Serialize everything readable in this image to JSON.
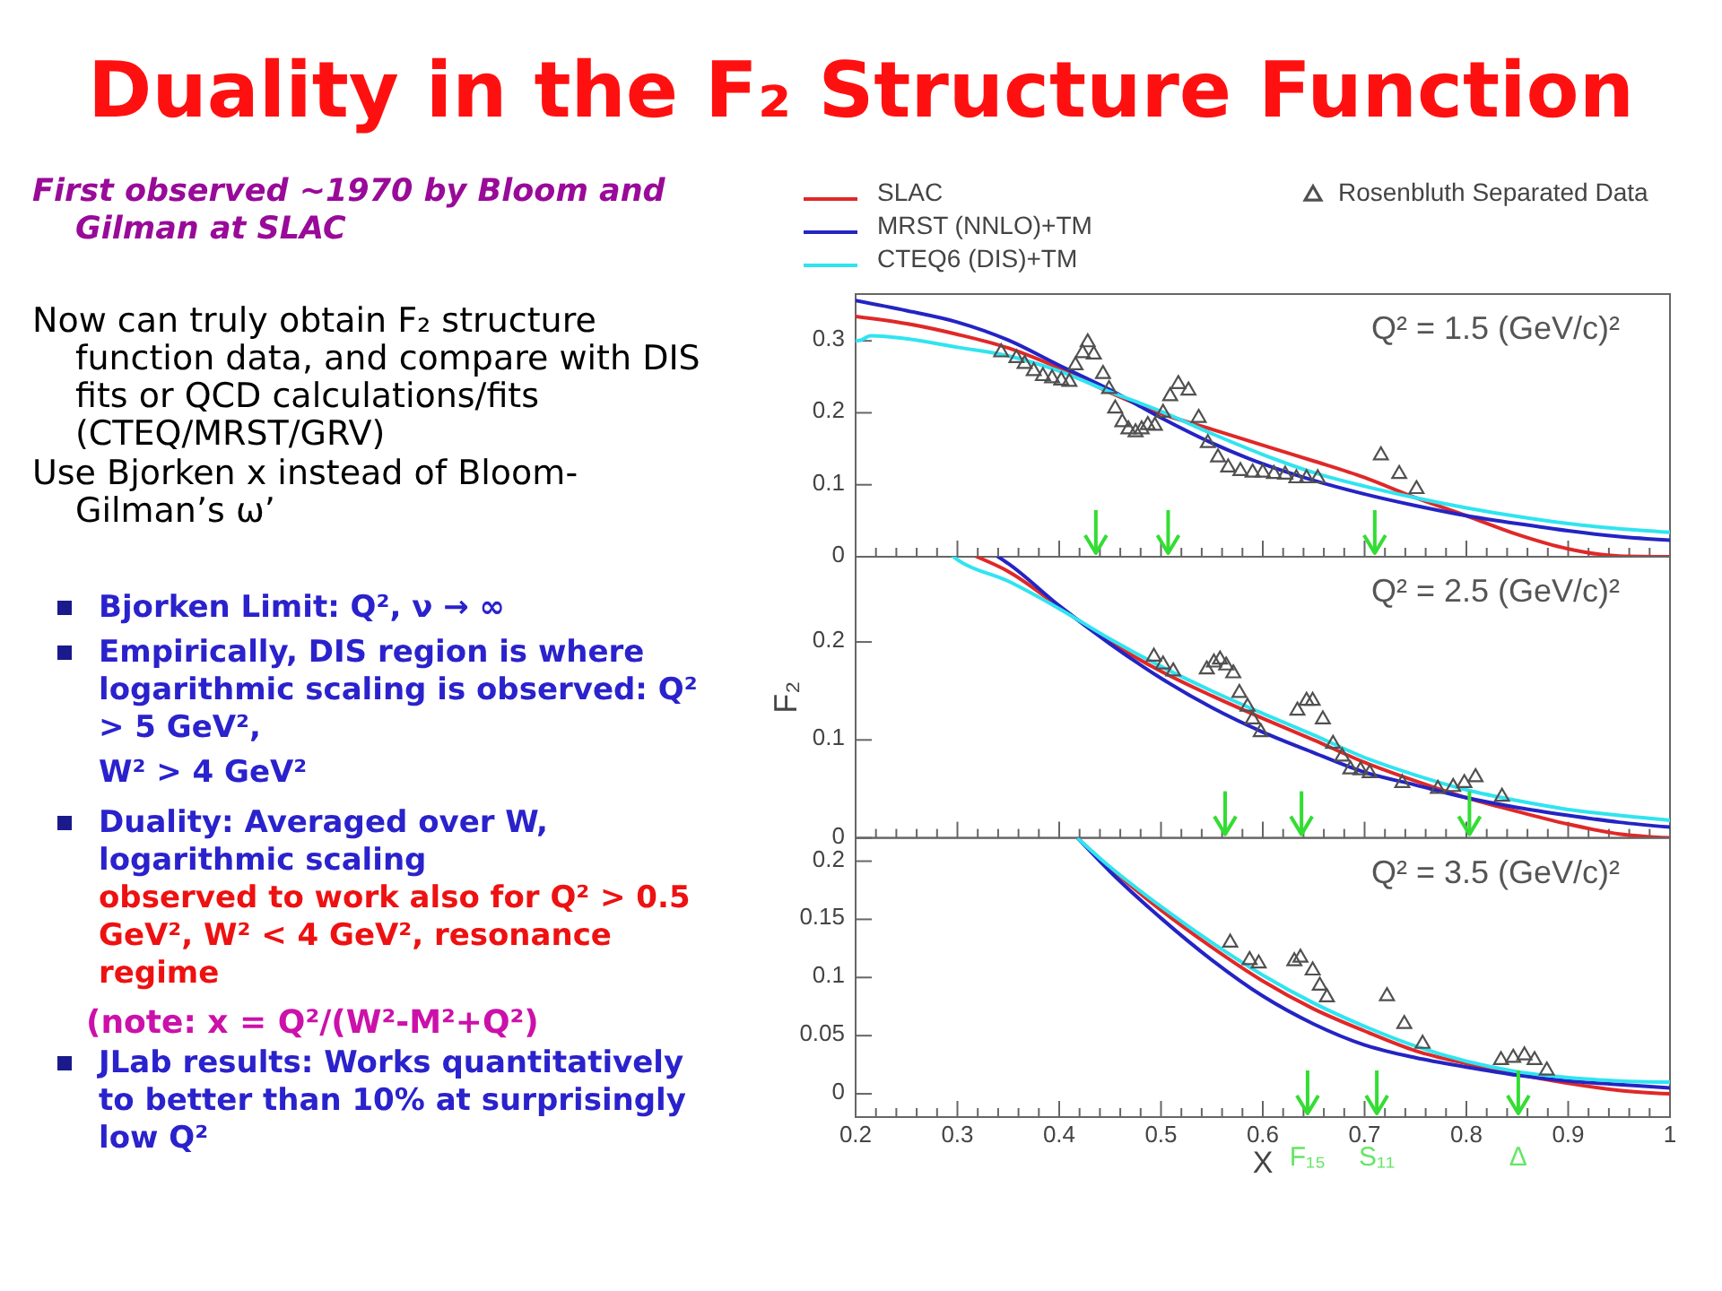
{
  "chart_data": [
    {
      "type": "other",
      "title": "Duality in the F₂ Structure Function",
      "annotations": [
        "First observed ~1970 by Bloom and Gilman at SLAC",
        "Now can truly obtain F₂ structure function data, and compare with DIS fits or QCD calculations/fits (CTEQ/MRST/GRV)",
        "Use Bjorken x instead of Bloom-Gilman’s ω’",
        "Bjorken Limit: Q², ν → ∞",
        "Empirically, DIS region is where logarithmic scaling is observed: Q² > 5 GeV²,",
        "W² > 4 GeV²",
        "Duality: Averaged over W, logarithmic scaling",
        "observed to work also for Q² > 0.5 GeV², W² < 4 GeV², resonance regime",
        "(note: x = Q²/(W²-M²+Q²)",
        "JLab results: Works quantitatively to better than 10% at surprisingly low Q²"
      ]
    },
    {
      "type": "line",
      "legend": "top",
      "tick_labels": "y",
      "xlim": [
        0.2,
        1
      ],
      "ylim": [
        0,
        0.365
      ],
      "yticks": [
        0,
        0.1,
        0.2,
        0.3
      ],
      "xticks": [
        0.2,
        {
          "value": 0.22,
          "label": null
        },
        {
          "value": 0.24,
          "label": null
        },
        {
          "value": 0.26,
          "label": null
        },
        {
          "value": 0.28,
          "label": null
        },
        0.3,
        {
          "value": 0.32,
          "label": null
        },
        {
          "value": 0.34,
          "label": null
        },
        {
          "value": 0.36,
          "label": null
        },
        {
          "value": 0.38,
          "label": null
        },
        0.4,
        {
          "value": 0.42,
          "label": null
        },
        {
          "value": 0.44,
          "label": null
        },
        {
          "value": 0.46,
          "label": null
        },
        {
          "value": 0.48,
          "label": null
        },
        0.5,
        {
          "value": 0.52,
          "label": null
        },
        {
          "value": 0.54,
          "label": null
        },
        {
          "value": 0.56,
          "label": null
        },
        {
          "value": 0.58,
          "label": null
        },
        0.6,
        {
          "value": 0.62,
          "label": null
        },
        {
          "value": 0.64,
          "label": null
        },
        {
          "value": 0.66,
          "label": null
        },
        {
          "value": 0.68,
          "label": null
        },
        0.7,
        {
          "value": 0.72,
          "label": null
        },
        {
          "value": 0.74,
          "label": null
        },
        {
          "value": 0.76,
          "label": null
        },
        {
          "value": 0.78,
          "label": null
        },
        0.8,
        {
          "value": 0.82,
          "label": null
        },
        {
          "value": 0.84,
          "label": null
        },
        {
          "value": 0.86,
          "label": null
        },
        {
          "value": 0.88,
          "label": null
        },
        0.9,
        {
          "value": 0.92,
          "label": null
        },
        {
          "value": 0.94,
          "label": null
        },
        {
          "value": 0.96,
          "label": null
        },
        {
          "value": 0.98,
          "label": null
        },
        1
      ],
      "annotations": [
        "Q² = 1.5 (GeV/c)²"
      ],
      "ref_lines": [
        {
          "axis": "x",
          "value": 0.436,
          "color": "#33dd33"
        },
        {
          "axis": "x",
          "value": 0.507,
          "color": "#33dd33"
        },
        {
          "axis": "x",
          "value": 0.71,
          "color": "#33dd33"
        }
      ],
      "series": [
        {
          "name": "SLAC",
          "type": "line",
          "color": "#e02828",
          "x": [
            0.2,
            0.25,
            0.3,
            0.35,
            0.4,
            0.45,
            0.5,
            0.55,
            0.6,
            0.65,
            0.7,
            0.75,
            0.8,
            0.85,
            0.9,
            0.95,
            1
          ],
          "values": [
            0.334,
            0.324,
            0.309,
            0.29,
            0.262,
            0.228,
            0.199,
            0.177,
            0.155,
            0.133,
            0.11,
            0.082,
            0.057,
            0.031,
            0.011,
            0.001,
            0
          ]
        },
        {
          "name": "MRST (NNLO)+TM",
          "type": "line",
          "color": "#2424c4",
          "x": [
            0.2,
            0.25,
            0.3,
            0.35,
            0.4,
            0.45,
            0.5,
            0.55,
            0.6,
            0.65,
            0.7,
            0.75,
            0.8,
            0.85,
            0.9,
            0.95,
            1
          ],
          "values": [
            0.356,
            0.342,
            0.326,
            0.301,
            0.266,
            0.232,
            0.193,
            0.158,
            0.129,
            0.106,
            0.087,
            0.071,
            0.057,
            0.046,
            0.036,
            0.028,
            0.023
          ]
        },
        {
          "name": "CTEQ6 (DIS)+TM",
          "type": "line",
          "color": "#30e4f0",
          "x": [
            0.2,
            0.205,
            0.215,
            0.25,
            0.3,
            0.35,
            0.4,
            0.45,
            0.5,
            0.55,
            0.6,
            0.65,
            0.7,
            0.75,
            0.8,
            0.85,
            0.9,
            0.95,
            1
          ],
          "values": [
            0.3,
            0.301,
            0.307,
            0.303,
            0.291,
            0.279,
            0.258,
            0.229,
            0.202,
            0.171,
            0.142,
            0.117,
            0.098,
            0.082,
            0.068,
            0.056,
            0.046,
            0.039,
            0.034
          ]
        },
        {
          "name": "Rosenbluth Separated Data",
          "type": "scatter",
          "marker": "triangle",
          "color": "#505050",
          "x": [
            0.343,
            0.358,
            0.366,
            0.375,
            0.384,
            0.393,
            0.402,
            0.41,
            0.416,
            0.423,
            0.428,
            0.434,
            0.443,
            0.449,
            0.455,
            0.462,
            0.468,
            0.475,
            0.481,
            0.487,
            0.494,
            0.502,
            0.509,
            0.517,
            0.527,
            0.537,
            0.546,
            0.556,
            0.566,
            0.578,
            0.59,
            0.6,
            0.611,
            0.622,
            0.633,
            0.643,
            0.654,
            0.716,
            0.734,
            0.751
          ],
          "values": [
            0.284,
            0.276,
            0.268,
            0.258,
            0.251,
            0.248,
            0.245,
            0.243,
            0.266,
            0.283,
            0.298,
            0.281,
            0.254,
            0.233,
            0.206,
            0.187,
            0.177,
            0.173,
            0.177,
            0.183,
            0.182,
            0.2,
            0.223,
            0.24,
            0.231,
            0.193,
            0.158,
            0.138,
            0.124,
            0.119,
            0.117,
            0.117,
            0.115,
            0.114,
            0.109,
            0.109,
            0.109,
            0.141,
            0.115,
            0.094
          ]
        }
      ]
    },
    {
      "type": "line",
      "tick_labels": "y",
      "ylabel": "F₂",
      "xlim": [
        0.2,
        1
      ],
      "ylim": [
        0,
        0.287
      ],
      "yticks": [
        0,
        0.1,
        0.2
      ],
      "xticks": [
        0.2,
        {
          "value": 0.22,
          "label": null
        },
        {
          "value": 0.24,
          "label": null
        },
        {
          "value": 0.26,
          "label": null
        },
        {
          "value": 0.28,
          "label": null
        },
        0.3,
        {
          "value": 0.32,
          "label": null
        },
        {
          "value": 0.34,
          "label": null
        },
        {
          "value": 0.36,
          "label": null
        },
        {
          "value": 0.38,
          "label": null
        },
        0.4,
        {
          "value": 0.42,
          "label": null
        },
        {
          "value": 0.44,
          "label": null
        },
        {
          "value": 0.46,
          "label": null
        },
        {
          "value": 0.48,
          "label": null
        },
        0.5,
        {
          "value": 0.52,
          "label": null
        },
        {
          "value": 0.54,
          "label": null
        },
        {
          "value": 0.56,
          "label": null
        },
        {
          "value": 0.58,
          "label": null
        },
        0.6,
        {
          "value": 0.62,
          "label": null
        },
        {
          "value": 0.64,
          "label": null
        },
        {
          "value": 0.66,
          "label": null
        },
        {
          "value": 0.68,
          "label": null
        },
        0.7,
        {
          "value": 0.72,
          "label": null
        },
        {
          "value": 0.74,
          "label": null
        },
        {
          "value": 0.76,
          "label": null
        },
        {
          "value": 0.78,
          "label": null
        },
        0.8,
        {
          "value": 0.82,
          "label": null
        },
        {
          "value": 0.84,
          "label": null
        },
        {
          "value": 0.86,
          "label": null
        },
        {
          "value": 0.88,
          "label": null
        },
        0.9,
        {
          "value": 0.92,
          "label": null
        },
        {
          "value": 0.94,
          "label": null
        },
        {
          "value": 0.96,
          "label": null
        },
        {
          "value": 0.98,
          "label": null
        },
        1
      ],
      "annotations": [
        "Q² = 2.5 (GeV/c)²"
      ],
      "ref_lines": [
        {
          "axis": "x",
          "value": 0.563,
          "color": "#33dd33"
        },
        {
          "axis": "x",
          "value": 0.638,
          "color": "#33dd33"
        },
        {
          "axis": "x",
          "value": 0.803,
          "color": "#33dd33"
        }
      ],
      "series": [
        {
          "type": "line",
          "color": "#e02828",
          "x": [
            0.319,
            0.35,
            0.4,
            0.45,
            0.5,
            0.55,
            0.6,
            0.65,
            0.7,
            0.75,
            0.8,
            0.85,
            0.9,
            0.95,
            1
          ],
          "values": [
            0.287,
            0.272,
            0.236,
            0.2,
            0.17,
            0.145,
            0.122,
            0.1,
            0.077,
            0.058,
            0.041,
            0.027,
            0.014,
            0.004,
            0
          ]
        },
        {
          "type": "line",
          "color": "#2424c4",
          "x": [
            0.34,
            0.35,
            0.4,
            0.45,
            0.5,
            0.55,
            0.6,
            0.65,
            0.7,
            0.75,
            0.8,
            0.85,
            0.9,
            0.95,
            1
          ],
          "values": [
            0.287,
            0.28,
            0.237,
            0.198,
            0.163,
            0.133,
            0.108,
            0.087,
            0.067,
            0.054,
            0.041,
            0.031,
            0.023,
            0.016,
            0.011
          ]
        },
        {
          "type": "line",
          "color": "#30e4f0",
          "x": [
            0.296,
            0.3,
            0.35,
            0.4,
            0.45,
            0.5,
            0.55,
            0.6,
            0.65,
            0.7,
            0.75,
            0.8,
            0.85,
            0.9,
            0.95,
            1
          ],
          "values": [
            0.287,
            0.284,
            0.262,
            0.234,
            0.203,
            0.175,
            0.15,
            0.127,
            0.105,
            0.082,
            0.064,
            0.049,
            0.038,
            0.029,
            0.023,
            0.018
          ]
        },
        {
          "type": "scatter",
          "marker": "triangle",
          "color": "#505050",
          "x": [
            0.493,
            0.502,
            0.512,
            0.545,
            0.552,
            0.558,
            0.564,
            0.571,
            0.577,
            0.585,
            0.59,
            0.598,
            0.634,
            0.643,
            0.649,
            0.659,
            0.669,
            0.678,
            0.686,
            0.696,
            0.705,
            0.737,
            0.772,
            0.787,
            0.798,
            0.809,
            0.835
          ],
          "values": [
            0.185,
            0.177,
            0.17,
            0.172,
            0.179,
            0.182,
            0.176,
            0.168,
            0.148,
            0.134,
            0.121,
            0.108,
            0.13,
            0.14,
            0.14,
            0.121,
            0.096,
            0.083,
            0.07,
            0.069,
            0.066,
            0.056,
            0.05,
            0.052,
            0.056,
            0.062,
            0.042
          ]
        }
      ]
    },
    {
      "type": "line",
      "xlabel": "X",
      "xlim": [
        0.2,
        1
      ],
      "ylim": [
        -0.02,
        0.22
      ],
      "yticks": [
        0,
        0.05,
        0.1,
        0.15,
        0.2
      ],
      "xticks": [
        0.2,
        {
          "value": 0.22,
          "label": null
        },
        {
          "value": 0.24,
          "label": null
        },
        {
          "value": 0.26,
          "label": null
        },
        {
          "value": 0.28,
          "label": null
        },
        0.3,
        {
          "value": 0.32,
          "label": null
        },
        {
          "value": 0.34,
          "label": null
        },
        {
          "value": 0.36,
          "label": null
        },
        {
          "value": 0.38,
          "label": null
        },
        0.4,
        {
          "value": 0.42,
          "label": null
        },
        {
          "value": 0.44,
          "label": null
        },
        {
          "value": 0.46,
          "label": null
        },
        {
          "value": 0.48,
          "label": null
        },
        0.5,
        {
          "value": 0.52,
          "label": null
        },
        {
          "value": 0.54,
          "label": null
        },
        {
          "value": 0.56,
          "label": null
        },
        {
          "value": 0.58,
          "label": null
        },
        0.6,
        {
          "value": 0.62,
          "label": null
        },
        {
          "value": 0.64,
          "label": null
        },
        {
          "value": 0.66,
          "label": null
        },
        {
          "value": 0.68,
          "label": null
        },
        0.7,
        {
          "value": 0.72,
          "label": null
        },
        {
          "value": 0.74,
          "label": null
        },
        {
          "value": 0.76,
          "label": null
        },
        {
          "value": 0.78,
          "label": null
        },
        0.8,
        {
          "value": 0.82,
          "label": null
        },
        {
          "value": 0.84,
          "label": null
        },
        {
          "value": 0.86,
          "label": null
        },
        {
          "value": 0.88,
          "label": null
        },
        0.9,
        {
          "value": 0.92,
          "label": null
        },
        {
          "value": 0.94,
          "label": null
        },
        {
          "value": 0.96,
          "label": null
        },
        {
          "value": 0.98,
          "label": null
        },
        1
      ],
      "annotations": [
        "Q² = 3.5 (GeV/c)²"
      ],
      "ref_lines": [
        {
          "axis": "x",
          "value": 0.644,
          "color": "#33dd33",
          "label": "F₁₅"
        },
        {
          "axis": "x",
          "value": 0.712,
          "color": "#33dd33",
          "label": "S₁₁"
        },
        {
          "axis": "x",
          "value": 0.851,
          "color": "#33dd33",
          "label": "Δ"
        }
      ],
      "series": [
        {
          "type": "line",
          "color": "#e02828",
          "x": [
            0.419,
            0.45,
            0.5,
            0.55,
            0.6,
            0.65,
            0.7,
            0.75,
            0.8,
            0.85,
            0.9,
            0.95,
            1
          ],
          "values": [
            0.219,
            0.194,
            0.158,
            0.126,
            0.097,
            0.073,
            0.054,
            0.037,
            0.026,
            0.017,
            0.009,
            0.003,
            0
          ]
        },
        {
          "type": "line",
          "color": "#2424c4",
          "x": [
            0.419,
            0.45,
            0.5,
            0.55,
            0.6,
            0.65,
            0.7,
            0.75,
            0.8,
            0.85,
            0.9,
            0.95,
            1
          ],
          "values": [
            0.219,
            0.191,
            0.151,
            0.115,
            0.084,
            0.06,
            0.042,
            0.031,
            0.023,
            0.016,
            0.011,
            0.008,
            0.005
          ]
        },
        {
          "type": "line",
          "color": "#30e4f0",
          "x": [
            0.419,
            0.45,
            0.5,
            0.55,
            0.6,
            0.65,
            0.7,
            0.75,
            0.8,
            0.85,
            0.9,
            0.95,
            1
          ],
          "values": [
            0.219,
            0.195,
            0.161,
            0.13,
            0.102,
            0.078,
            0.058,
            0.041,
            0.028,
            0.019,
            0.014,
            0.011,
            0.01
          ]
        },
        {
          "type": "scatter",
          "marker": "triangle",
          "color": "#505050",
          "x": [
            0.568,
            0.587,
            0.596,
            0.631,
            0.637,
            0.649,
            0.656,
            0.663,
            0.722,
            0.739,
            0.757,
            0.834,
            0.846,
            0.857,
            0.867,
            0.879
          ],
          "values": [
            0.13,
            0.115,
            0.112,
            0.114,
            0.117,
            0.106,
            0.093,
            0.083,
            0.084,
            0.06,
            0.043,
            0.029,
            0.031,
            0.033,
            0.029,
            0.02
          ]
        }
      ]
    }
  ]
}
